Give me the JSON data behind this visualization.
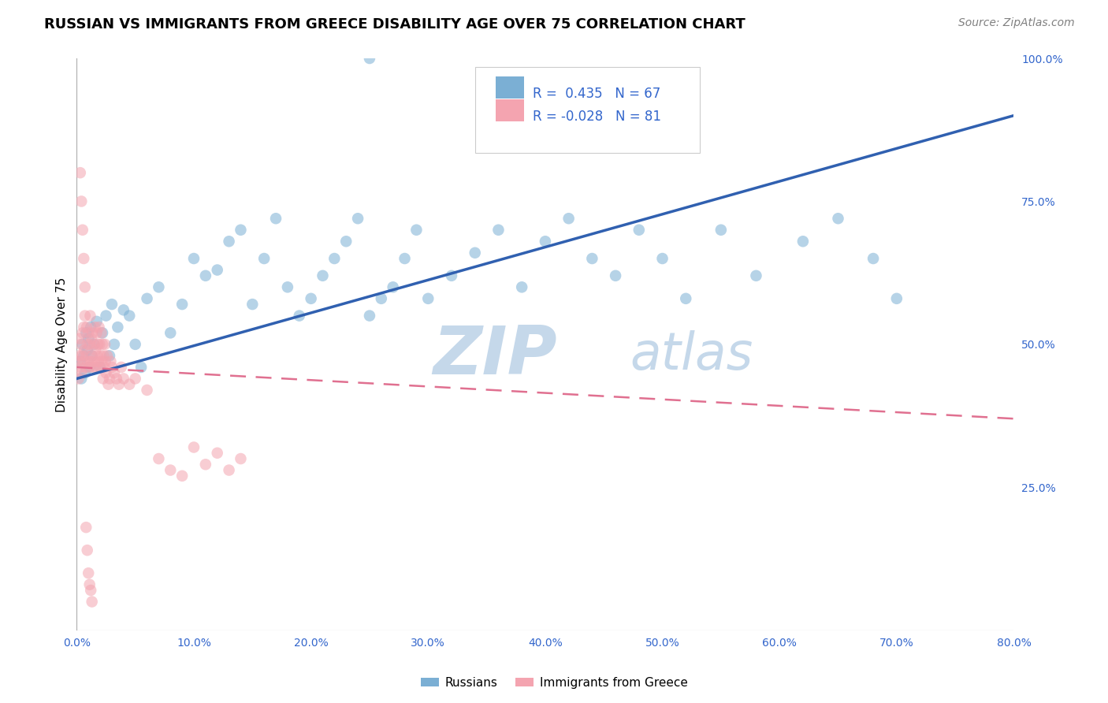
{
  "title": "RUSSIAN VS IMMIGRANTS FROM GREECE DISABILITY AGE OVER 75 CORRELATION CHART",
  "source": "Source: ZipAtlas.com",
  "ylabel": "Disability Age Over 75",
  "xlabel_ticks": [
    "0.0%",
    "10.0%",
    "20.0%",
    "30.0%",
    "40.0%",
    "50.0%",
    "60.0%",
    "70.0%",
    "80.0%"
  ],
  "xlabel_vals": [
    0,
    10,
    20,
    30,
    40,
    50,
    60,
    70,
    80
  ],
  "ylabel_ticks": [
    "100.0%",
    "75.0%",
    "50.0%",
    "25.0%"
  ],
  "ylabel_vals": [
    100,
    75,
    50,
    25
  ],
  "xlim": [
    0,
    80
  ],
  "ylim": [
    0,
    100
  ],
  "r_russian": 0.435,
  "n_russian": 67,
  "r_greece": -0.028,
  "n_greece": 81,
  "blue_color": "#7BAFD4",
  "pink_color": "#F4A4B0",
  "blue_line_color": "#3060B0",
  "pink_line_color": "#E07090",
  "legend_label_russian": "Russians",
  "legend_label_greece": "Immigrants from Greece",
  "title_fontsize": 13,
  "source_fontsize": 10,
  "axis_label_fontsize": 11,
  "tick_fontsize": 10,
  "watermark_zip": "ZIP",
  "watermark_atlas": "atlas",
  "watermark_color_zip": "#C5D8EA",
  "watermark_color_atlas": "#C5D8EA",
  "watermark_fontsize": 62,
  "blue_trend_x0": 0,
  "blue_trend_y0": 44,
  "blue_trend_x1": 80,
  "blue_trend_y1": 90,
  "pink_trend_x0": 0,
  "pink_trend_y0": 46,
  "pink_trend_x1": 80,
  "pink_trend_y1": 37
}
